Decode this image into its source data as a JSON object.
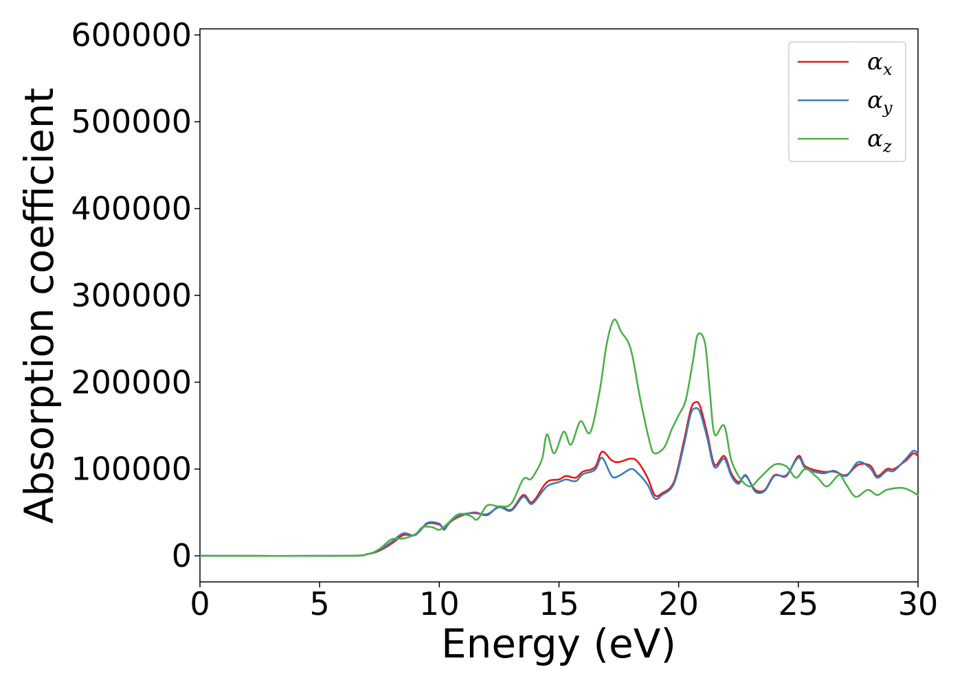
{
  "chart_data": {
    "type": "line",
    "title": "",
    "xlabel": "Energy (eV)",
    "ylabel": "Absorption coefficient",
    "xlim": [
      0,
      30
    ],
    "ylim": [
      -30000,
      607000
    ],
    "xticks": [
      0,
      5,
      10,
      15,
      20,
      25,
      30
    ],
    "yticks": [
      0,
      100000,
      200000,
      300000,
      400000,
      500000,
      600000
    ],
    "xtick_labels": [
      "0",
      "5",
      "10",
      "15",
      "20",
      "25",
      "30"
    ],
    "ytick_labels": [
      "0",
      "100000",
      "200000",
      "300000",
      "400000",
      "500000",
      "600000"
    ],
    "grid": false,
    "legend_position": "top-right",
    "series": [
      {
        "name": "α",
        "sub": "x",
        "color": "#e41a1c",
        "points": [
          [
            0,
            0
          ],
          [
            6,
            0
          ],
          [
            7,
            2000
          ],
          [
            7.5,
            6000
          ],
          [
            8,
            14000
          ],
          [
            8.5,
            24000
          ],
          [
            9,
            24000
          ],
          [
            9.5,
            37000
          ],
          [
            10,
            36000
          ],
          [
            10.2,
            31000
          ],
          [
            10.5,
            40000
          ],
          [
            11,
            47000
          ],
          [
            11.5,
            50000
          ],
          [
            12,
            47000
          ],
          [
            12.5,
            57000
          ],
          [
            13,
            53000
          ],
          [
            13.5,
            70000
          ],
          [
            13.8,
            62000
          ],
          [
            14,
            65000
          ],
          [
            14.5,
            85000
          ],
          [
            15,
            88000
          ],
          [
            15.3,
            92000
          ],
          [
            15.7,
            90000
          ],
          [
            16,
            97000
          ],
          [
            16.5,
            102000
          ],
          [
            16.8,
            120000
          ],
          [
            17.2,
            110000
          ],
          [
            17.5,
            108000
          ],
          [
            18,
            112000
          ],
          [
            18.3,
            108000
          ],
          [
            18.7,
            90000
          ],
          [
            19,
            70000
          ],
          [
            19.3,
            72000
          ],
          [
            19.8,
            85000
          ],
          [
            20.2,
            130000
          ],
          [
            20.5,
            168000
          ],
          [
            20.7,
            177000
          ],
          [
            20.9,
            172000
          ],
          [
            21.2,
            140000
          ],
          [
            21.5,
            105000
          ],
          [
            21.9,
            115000
          ],
          [
            22.2,
            95000
          ],
          [
            22.5,
            85000
          ],
          [
            22.8,
            92000
          ],
          [
            23.2,
            76000
          ],
          [
            23.6,
            76000
          ],
          [
            24,
            93000
          ],
          [
            24.5,
            92000
          ],
          [
            25,
            115000
          ],
          [
            25.3,
            103000
          ],
          [
            26,
            97000
          ],
          [
            26.5,
            97000
          ],
          [
            27,
            93000
          ],
          [
            27.5,
            105000
          ],
          [
            28,
            104000
          ],
          [
            28.3,
            92000
          ],
          [
            28.7,
            100000
          ],
          [
            29,
            100000
          ],
          [
            29.5,
            110000
          ],
          [
            29.8,
            118000
          ],
          [
            30,
            115000
          ]
        ]
      },
      {
        "name": "α",
        "sub": "y",
        "color": "#377eb8",
        "points": [
          [
            0,
            0
          ],
          [
            6,
            0
          ],
          [
            7,
            2000
          ],
          [
            7.5,
            7000
          ],
          [
            8,
            16000
          ],
          [
            8.5,
            26000
          ],
          [
            9,
            24000
          ],
          [
            9.5,
            38000
          ],
          [
            10,
            37000
          ],
          [
            10.2,
            30000
          ],
          [
            10.5,
            41000
          ],
          [
            11,
            48000
          ],
          [
            11.5,
            49000
          ],
          [
            12,
            48000
          ],
          [
            12.5,
            56000
          ],
          [
            13,
            52000
          ],
          [
            13.5,
            68000
          ],
          [
            13.8,
            60000
          ],
          [
            14,
            63000
          ],
          [
            14.5,
            80000
          ],
          [
            15,
            85000
          ],
          [
            15.3,
            88000
          ],
          [
            15.7,
            86000
          ],
          [
            16,
            94000
          ],
          [
            16.5,
            99000
          ],
          [
            16.8,
            113000
          ],
          [
            17.2,
            92000
          ],
          [
            17.5,
            92000
          ],
          [
            18,
            100000
          ],
          [
            18.3,
            95000
          ],
          [
            18.7,
            82000
          ],
          [
            19,
            66000
          ],
          [
            19.3,
            70000
          ],
          [
            19.8,
            83000
          ],
          [
            20.2,
            125000
          ],
          [
            20.5,
            163000
          ],
          [
            20.7,
            170000
          ],
          [
            20.9,
            165000
          ],
          [
            21.2,
            135000
          ],
          [
            21.5,
            102000
          ],
          [
            21.9,
            112000
          ],
          [
            22.2,
            92000
          ],
          [
            22.5,
            83000
          ],
          [
            22.8,
            93000
          ],
          [
            23.2,
            74000
          ],
          [
            23.6,
            75000
          ],
          [
            24,
            92000
          ],
          [
            24.5,
            93000
          ],
          [
            25,
            113000
          ],
          [
            25.3,
            101000
          ],
          [
            26,
            95000
          ],
          [
            26.5,
            98000
          ],
          [
            27,
            92000
          ],
          [
            27.5,
            108000
          ],
          [
            28,
            101000
          ],
          [
            28.3,
            90000
          ],
          [
            28.7,
            98000
          ],
          [
            29,
            98000
          ],
          [
            29.5,
            112000
          ],
          [
            29.8,
            121000
          ],
          [
            30,
            118000
          ]
        ]
      },
      {
        "name": "α",
        "sub": "z",
        "color": "#4daf4a",
        "points": [
          [
            0,
            0
          ],
          [
            6,
            0
          ],
          [
            7,
            2000
          ],
          [
            7.5,
            8000
          ],
          [
            8,
            19000
          ],
          [
            8.5,
            20000
          ],
          [
            9,
            25000
          ],
          [
            9.3,
            33000
          ],
          [
            9.7,
            33000
          ],
          [
            10,
            30000
          ],
          [
            10.3,
            36000
          ],
          [
            10.8,
            48000
          ],
          [
            11.3,
            46000
          ],
          [
            11.6,
            42000
          ],
          [
            12,
            58000
          ],
          [
            12.5,
            57000
          ],
          [
            13,
            60000
          ],
          [
            13.5,
            88000
          ],
          [
            13.8,
            88000
          ],
          [
            14,
            95000
          ],
          [
            14.3,
            112000
          ],
          [
            14.5,
            140000
          ],
          [
            14.8,
            118000
          ],
          [
            15.2,
            143000
          ],
          [
            15.5,
            128000
          ],
          [
            15.9,
            155000
          ],
          [
            16.3,
            142000
          ],
          [
            16.7,
            190000
          ],
          [
            17,
            245000
          ],
          [
            17.3,
            272000
          ],
          [
            17.6,
            258000
          ],
          [
            18,
            238000
          ],
          [
            18.4,
            180000
          ],
          [
            18.8,
            130000
          ],
          [
            19,
            118000
          ],
          [
            19.4,
            125000
          ],
          [
            19.7,
            145000
          ],
          [
            20,
            162000
          ],
          [
            20.3,
            180000
          ],
          [
            20.6,
            225000
          ],
          [
            20.8,
            255000
          ],
          [
            21.1,
            245000
          ],
          [
            21.3,
            190000
          ],
          [
            21.5,
            140000
          ],
          [
            21.9,
            150000
          ],
          [
            22.2,
            110000
          ],
          [
            22.6,
            88000
          ],
          [
            23,
            80000
          ],
          [
            23.4,
            90000
          ],
          [
            24,
            105000
          ],
          [
            24.5,
            103000
          ],
          [
            24.9,
            90000
          ],
          [
            25.3,
            100000
          ],
          [
            25.8,
            90000
          ],
          [
            26.2,
            80000
          ],
          [
            26.7,
            93000
          ],
          [
            27,
            82000
          ],
          [
            27.4,
            68000
          ],
          [
            27.9,
            76000
          ],
          [
            28.3,
            70000
          ],
          [
            28.7,
            76000
          ],
          [
            29.4,
            78000
          ],
          [
            30,
            70000
          ]
        ]
      }
    ]
  }
}
